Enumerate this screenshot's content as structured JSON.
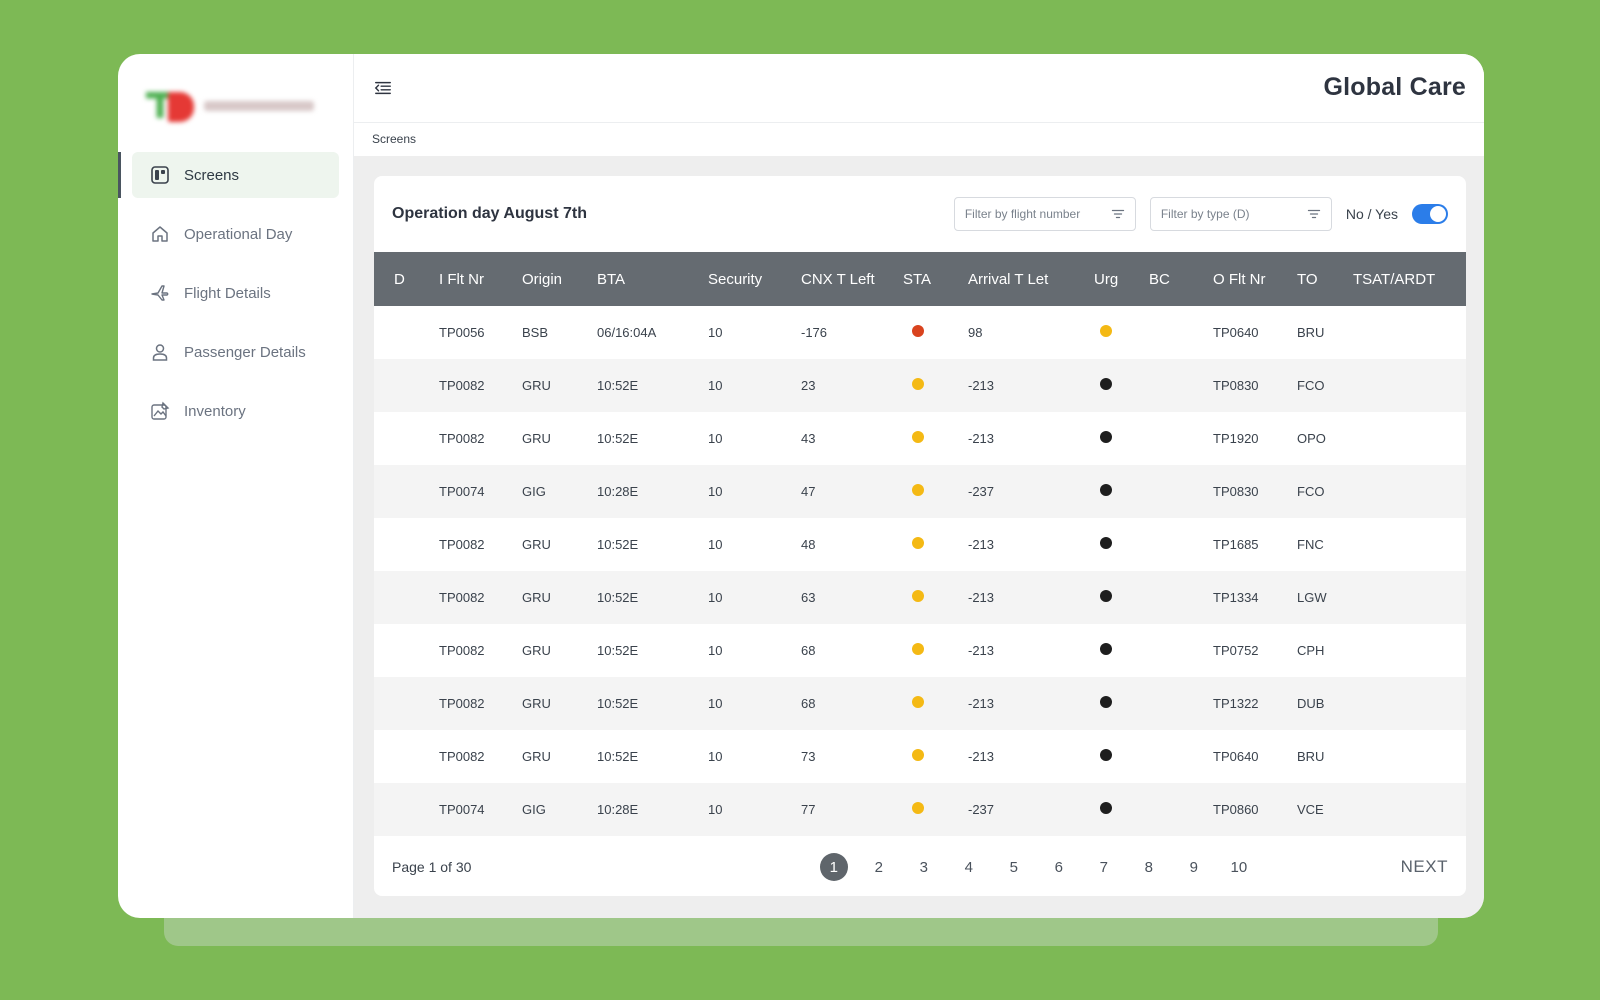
{
  "app": {
    "title": "Global Care"
  },
  "breadcrumb": "Screens",
  "sidebar": {
    "items": [
      {
        "label": "Screens",
        "icon": "screens-icon",
        "active": true
      },
      {
        "label": "Operational Day",
        "icon": "home-icon",
        "active": false
      },
      {
        "label": "Flight Details",
        "icon": "plane-icon",
        "active": false
      },
      {
        "label": "Passenger Details",
        "icon": "user-icon",
        "active": false
      },
      {
        "label": "Inventory",
        "icon": "inventory-icon",
        "active": false
      }
    ]
  },
  "panel": {
    "title": "Operation day August 7th",
    "filters": {
      "flight_placeholder": "Filter by flight number",
      "type_placeholder": "Filter by type (D)"
    },
    "toggle": {
      "label": "No / Yes",
      "value": true
    }
  },
  "colors": {
    "red": "#d9431e",
    "yellow": "#f4b914",
    "black": "#1e1e1e",
    "accent": "#2b7de9",
    "header": "#656b71"
  },
  "table": {
    "headers": [
      "D",
      "I Flt Nr",
      "Origin",
      "BTA",
      "Security",
      "CNX T Left",
      "STA",
      "Arrival T Let",
      "Urg",
      "BC",
      "O Flt Nr",
      "TO",
      "TSAT/ARDT"
    ],
    "rows": [
      {
        "d": "",
        "iflt": "TP0056",
        "origin": "BSB",
        "bta": "06/16:04A",
        "security": "10",
        "cnx": "-176",
        "sta": "red",
        "arrival": "98",
        "urg": "yellow",
        "bc": "",
        "oflt": "TP0640",
        "to": "BRU",
        "tsat": ""
      },
      {
        "d": "",
        "iflt": "TP0082",
        "origin": "GRU",
        "bta": "10:52E",
        "security": "10",
        "cnx": "23",
        "sta": "yellow",
        "arrival": "-213",
        "urg": "black",
        "bc": "",
        "oflt": "TP0830",
        "to": "FCO",
        "tsat": ""
      },
      {
        "d": "",
        "iflt": "TP0082",
        "origin": "GRU",
        "bta": "10:52E",
        "security": "10",
        "cnx": "43",
        "sta": "yellow",
        "arrival": "-213",
        "urg": "black",
        "bc": "",
        "oflt": "TP1920",
        "to": "OPO",
        "tsat": ""
      },
      {
        "d": "",
        "iflt": "TP0074",
        "origin": "GIG",
        "bta": "10:28E",
        "security": "10",
        "cnx": "47",
        "sta": "yellow",
        "arrival": "-237",
        "urg": "black",
        "bc": "",
        "oflt": "TP0830",
        "to": "FCO",
        "tsat": ""
      },
      {
        "d": "",
        "iflt": "TP0082",
        "origin": "GRU",
        "bta": "10:52E",
        "security": "10",
        "cnx": "48",
        "sta": "yellow",
        "arrival": "-213",
        "urg": "black",
        "bc": "",
        "oflt": "TP1685",
        "to": "FNC",
        "tsat": ""
      },
      {
        "d": "",
        "iflt": "TP0082",
        "origin": "GRU",
        "bta": "10:52E",
        "security": "10",
        "cnx": "63",
        "sta": "yellow",
        "arrival": "-213",
        "urg": "black",
        "bc": "",
        "oflt": "TP1334",
        "to": "LGW",
        "tsat": ""
      },
      {
        "d": "",
        "iflt": "TP0082",
        "origin": "GRU",
        "bta": "10:52E",
        "security": "10",
        "cnx": "68",
        "sta": "yellow",
        "arrival": "-213",
        "urg": "black",
        "bc": "",
        "oflt": "TP0752",
        "to": "CPH",
        "tsat": ""
      },
      {
        "d": "",
        "iflt": "TP0082",
        "origin": "GRU",
        "bta": "10:52E",
        "security": "10",
        "cnx": "68",
        "sta": "yellow",
        "arrival": "-213",
        "urg": "black",
        "bc": "",
        "oflt": "TP1322",
        "to": "DUB",
        "tsat": ""
      },
      {
        "d": "",
        "iflt": "TP0082",
        "origin": "GRU",
        "bta": "10:52E",
        "security": "10",
        "cnx": "73",
        "sta": "yellow",
        "arrival": "-213",
        "urg": "black",
        "bc": "",
        "oflt": "TP0640",
        "to": "BRU",
        "tsat": ""
      },
      {
        "d": "",
        "iflt": "TP0074",
        "origin": "GIG",
        "bta": "10:28E",
        "security": "10",
        "cnx": "77",
        "sta": "yellow",
        "arrival": "-237",
        "urg": "black",
        "bc": "",
        "oflt": "TP0860",
        "to": "VCE",
        "tsat": ""
      }
    ]
  },
  "pagination": {
    "info": "Page 1 of 30",
    "current": "1",
    "pages": [
      "1",
      "2",
      "3",
      "4",
      "5",
      "6",
      "7",
      "8",
      "9",
      "10"
    ],
    "next_label": "NEXT"
  }
}
